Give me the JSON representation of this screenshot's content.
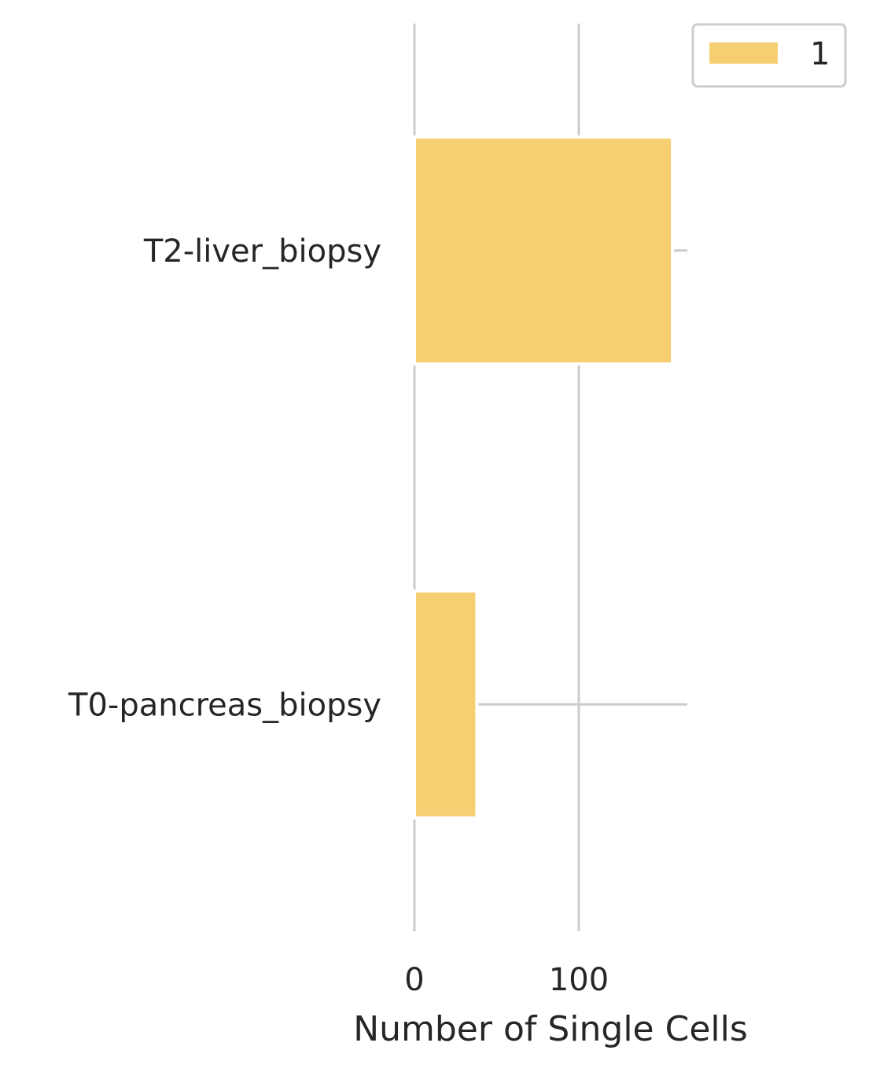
{
  "chart_data": {
    "type": "bar",
    "orientation": "horizontal",
    "categories": [
      "T2-liver_biopsy",
      "T0-pancreas_biopsy"
    ],
    "series": [
      {
        "name": "1",
        "values": [
          157,
          38
        ],
        "error_upper": [
          166,
          166
        ]
      }
    ],
    "title": "",
    "xlabel": "Number of Single Cells",
    "ylabel": "",
    "xlim": [
      0,
      166
    ],
    "xticks": [
      0,
      100
    ],
    "grid": "x",
    "legend": "top-right",
    "colors": {
      "bar": "#f6cf72",
      "grid": "#cccccc",
      "text": "#262626"
    }
  }
}
